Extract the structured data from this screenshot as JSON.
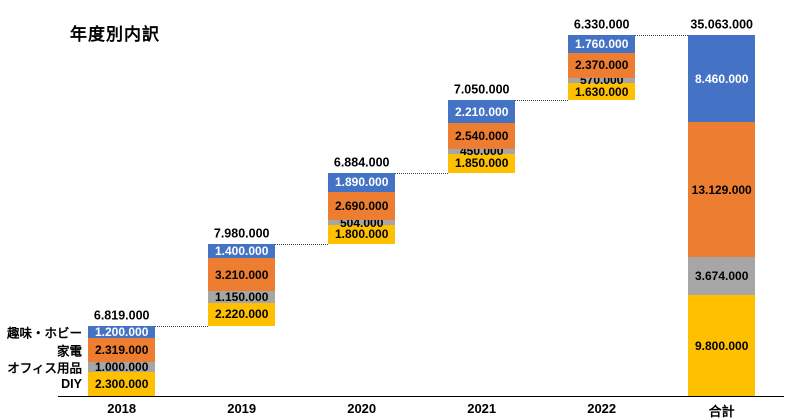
{
  "chart_data": {
    "type": "bar",
    "subtype": "stacked-waterfall",
    "title": "年度別内訳",
    "categories": [
      "2018",
      "2019",
      "2020",
      "2021",
      "2022",
      "合計"
    ],
    "series": [
      {
        "name": "趣味・ホビー",
        "color": "#4472C4",
        "label_color": "#FFFFFF",
        "values": [
          1200000,
          1400000,
          1890000,
          2210000,
          1760000,
          8460000
        ],
        "labels": [
          "1.200.000",
          "1.400.000",
          "1.890.000",
          "2.210.000",
          "1.760.000",
          "8.460.000"
        ]
      },
      {
        "name": "家電",
        "color": "#ED7D31",
        "label_color": "#000000",
        "values": [
          2319000,
          3210000,
          2690000,
          2540000,
          2370000,
          13129000
        ],
        "labels": [
          "2.319.000",
          "3.210.000",
          "2.690.000",
          "2.540.000",
          "2.370.000",
          "13.129.000"
        ]
      },
      {
        "name": "オフィス用品",
        "color": "#A6A6A6",
        "label_color": "#000000",
        "values": [
          1000000,
          1150000,
          504000,
          450000,
          570000,
          3674000
        ],
        "labels": [
          "1.000.000",
          "1.150.000",
          "504.000",
          "450.000",
          "570.000",
          "3.674.000"
        ]
      },
      {
        "name": "DIY",
        "color": "#FFC000",
        "label_color": "#000000",
        "values": [
          2300000,
          2220000,
          1800000,
          1850000,
          1630000,
          9800000
        ],
        "labels": [
          "2.300.000",
          "2.220.000",
          "1.800.000",
          "1.850.000",
          "1.630.000",
          "9.800.000"
        ]
      }
    ],
    "totals": [
      6819000,
      7980000,
      6884000,
      7050000,
      6330000,
      35063000
    ],
    "total_labels": [
      "6.819.000",
      "7.980.000",
      "6.884.000",
      "7.050.000",
      "6.330.000",
      "35.063.000"
    ],
    "stack_order_bottom_to_top": [
      "DIY",
      "オフィス用品",
      "家電",
      "趣味・ホビー"
    ],
    "waterfall": true,
    "connector_style": "dotted",
    "axis": {
      "ylim": [
        0,
        35063000
      ],
      "gridlines": false,
      "legend_position": "left-of-first-bar"
    }
  }
}
